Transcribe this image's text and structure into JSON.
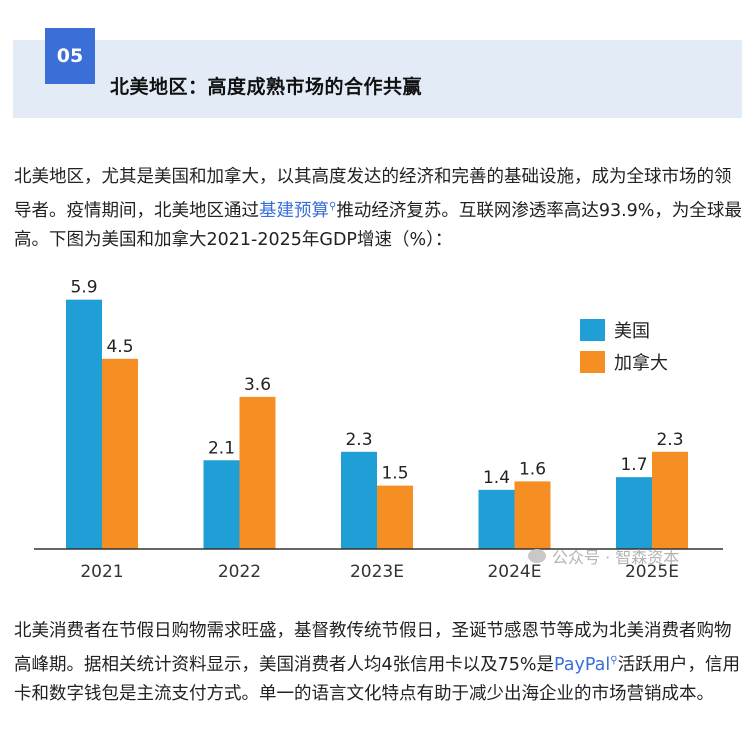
{
  "header": {
    "number": "05",
    "title": "北美地区：高度成熟市场的合作共赢"
  },
  "paragraph1": {
    "text_before": "北美地区，尤其是美国和加拿大，以其高度发达的经济和完善的基础设施，成为全球市场的领导者。疫情期间，北美地区通过",
    "link": "基建预算",
    "text_after": "推动经济复苏。互联网渗透率高达93.9%，为全球最高。下图为美国和加拿大2021-2025年GDP增速（%）："
  },
  "paragraph2": {
    "text_before": "北美消费者在节假日购物需求旺盛，基督教传统节假日，圣诞节感恩节等成为北美消费者购物高峰期。据相关统计资料显示，美国消费者人均4张信用卡以及75%是",
    "link": "PayPal",
    "text_after": "活跃用户，信用卡和数字钱包是主流支付方式。单一的语言文化特点有助于减少出海企业的市场营销成本。"
  },
  "watermark": "公众号 · 智森资本",
  "chart_data": {
    "type": "bar",
    "categories": [
      "2021",
      "2022",
      "2023E",
      "2024E",
      "2025E"
    ],
    "series": [
      {
        "name": "美国",
        "values": [
          5.9,
          2.1,
          2.3,
          1.4,
          1.7
        ],
        "color": "#1f9fd6"
      },
      {
        "name": "加拿大",
        "values": [
          4.5,
          3.6,
          1.5,
          1.6,
          2.3
        ],
        "color": "#f58f24"
      }
    ],
    "data_labels": [
      [
        "5.9",
        "2.1",
        "2.3",
        "1.4",
        "1.7"
      ],
      [
        "4.5",
        "3.6",
        "1.5",
        "1.6",
        "2.3"
      ]
    ],
    "ylim": [
      0,
      6.2
    ],
    "grid": false,
    "legend": "top-right",
    "title": "",
    "xlabel": "",
    "ylabel": ""
  }
}
